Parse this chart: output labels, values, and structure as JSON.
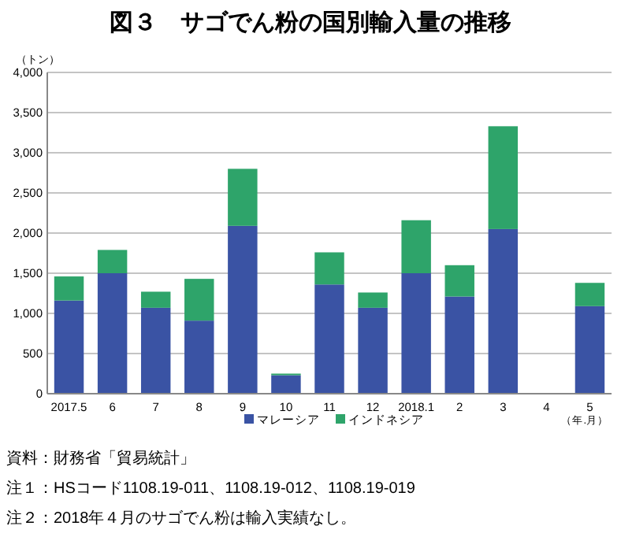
{
  "chart_data": {
    "type": "bar",
    "title": "図３　サゴでん粉の国別輸入量の推移",
    "ylabel": "（トン）",
    "xlabel": "（年.月）",
    "categories": [
      "2017.5",
      "6",
      "7",
      "8",
      "9",
      "10",
      "11",
      "12",
      "2018.1",
      "2",
      "3",
      "4",
      "5"
    ],
    "stacked": true,
    "series": [
      {
        "name": "マレーシア",
        "color": "#3a53a4",
        "values": [
          1160,
          1500,
          1070,
          910,
          2090,
          230,
          1360,
          1070,
          1500,
          1210,
          2050,
          0,
          1090
        ]
      },
      {
        "name": "インドネシア",
        "color": "#2ea46a",
        "values": [
          300,
          290,
          200,
          520,
          710,
          20,
          400,
          190,
          660,
          390,
          1280,
          0,
          290
        ]
      }
    ],
    "ylim": [
      0,
      4000
    ],
    "yticks": [
      {
        "value": 0,
        "label": "0"
      },
      {
        "value": 500,
        "label": "500"
      },
      {
        "value": 1000,
        "label": "1,000"
      },
      {
        "value": 1500,
        "label": "1,500"
      },
      {
        "value": 2000,
        "label": "2,000"
      },
      {
        "value": 2500,
        "label": "2,500"
      },
      {
        "value": 3000,
        "label": "3,000"
      },
      {
        "value": 3500,
        "label": "3,500"
      },
      {
        "value": 4000,
        "label": "4,000"
      }
    ],
    "grid": "y",
    "legend": "bottom",
    "annotations": [
      "資料：財務省「貿易統計」",
      "注１：HSコード1108.19-011、1108.19-012、1108.19-019",
      "注２：2018年４月のサゴでん粉は輸入実績なし。"
    ]
  }
}
